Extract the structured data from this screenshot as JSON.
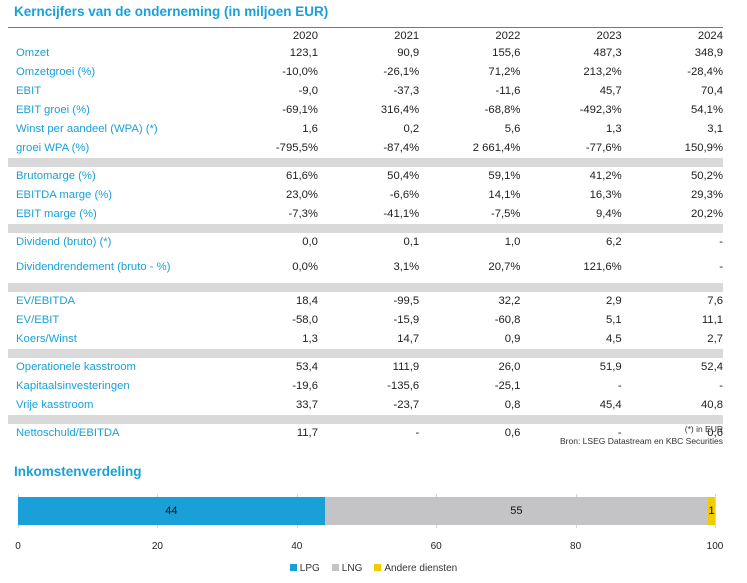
{
  "table_title": "Kerncijfers van de onderneming (in miljoen EUR)",
  "years": [
    "2020",
    "2021",
    "2022",
    "2023",
    "2024"
  ],
  "groups": [
    {
      "rows": [
        {
          "label": "Omzet",
          "values": [
            "123,1",
            "90,9",
            "155,6",
            "487,3",
            "348,9"
          ]
        },
        {
          "label": "Omzetgroei (%)",
          "values": [
            "-10,0%",
            "-26,1%",
            "71,2%",
            "213,2%",
            "-28,4%"
          ]
        },
        {
          "label": "EBIT",
          "values": [
            "-9,0",
            "-37,3",
            "-11,6",
            "45,7",
            "70,4"
          ]
        },
        {
          "label": "EBIT groei (%)",
          "values": [
            "-69,1%",
            "316,4%",
            "-68,8%",
            "-492,3%",
            "54,1%"
          ]
        },
        {
          "label": "Winst per aandeel (WPA) (*)",
          "values": [
            "1,6",
            "0,2",
            "5,6",
            "1,3",
            "3,1"
          ]
        },
        {
          "label": "groei WPA (%)",
          "values": [
            "-795,5%",
            "-87,4%",
            "2 661,4%",
            "-77,6%",
            "150,9%"
          ]
        }
      ]
    },
    {
      "rows": [
        {
          "label": "Brutomarge (%)",
          "values": [
            "61,6%",
            "50,4%",
            "59,1%",
            "41,2%",
            "50,2%"
          ]
        },
        {
          "label": "EBITDA marge (%)",
          "values": [
            "23,0%",
            "-6,6%",
            "14,1%",
            "16,3%",
            "29,3%"
          ]
        },
        {
          "label": "EBIT marge (%)",
          "values": [
            "-7,3%",
            "-41,1%",
            "-7,5%",
            "9,4%",
            "20,2%"
          ]
        }
      ]
    },
    {
      "rows": [
        {
          "label": "Dividend (bruto) (*)",
          "values": [
            "0,0",
            "0,1",
            "1,0",
            "6,2",
            "-"
          ]
        },
        {
          "label": "Dividendrendement (bruto - %)",
          "values": [
            "0,0%",
            "3,1%",
            "20,7%",
            "121,6%",
            "-"
          ],
          "tall": true
        }
      ]
    },
    {
      "rows": [
        {
          "label": "EV/EBITDA",
          "values": [
            "18,4",
            "-99,5",
            "32,2",
            "2,9",
            "7,6"
          ]
        },
        {
          "label": "EV/EBIT",
          "values": [
            "-58,0",
            "-15,9",
            "-60,8",
            "5,1",
            "11,1"
          ]
        },
        {
          "label": "Koers/Winst",
          "values": [
            "1,3",
            "14,7",
            "0,9",
            "4,5",
            "2,7"
          ]
        }
      ]
    },
    {
      "rows": [
        {
          "label": "Operationele kasstroom",
          "values": [
            "53,4",
            "111,9",
            "26,0",
            "51,9",
            "52,4"
          ]
        },
        {
          "label": "Kapitaalsinvesteringen",
          "values": [
            "-19,6",
            "-135,6",
            "-25,1",
            "-",
            "-"
          ]
        },
        {
          "label": "Vrije kasstroom",
          "values": [
            "33,7",
            "-23,7",
            "0,8",
            "45,4",
            "40,8"
          ]
        }
      ]
    },
    {
      "rows": [
        {
          "label": "Nettoschuld/EBITDA",
          "values": [
            "11,7",
            "-",
            "0,6",
            "-",
            "0,6"
          ]
        }
      ]
    }
  ],
  "notes": {
    "wpa_note": "(*) in EUR",
    "source": "Bron: LSEG Datastream en KBC Securities"
  },
  "chart_data": {
    "type": "bar",
    "title": "Inkomstenverdeling",
    "orientation": "horizontal-stacked",
    "series": [
      {
        "name": "LPG",
        "value": 44,
        "label": "44",
        "color": "#1aa0d8"
      },
      {
        "name": "LNG",
        "value": 55,
        "label": "55",
        "color": "#c4c4c7"
      },
      {
        "name": "Andere diensten",
        "value": 1,
        "label": "1",
        "color": "#f0cc00"
      }
    ],
    "xlim": [
      0,
      100
    ],
    "xticks": [
      "0",
      "20",
      "40",
      "60",
      "80",
      "100"
    ],
    "legend_position": "bottom"
  }
}
